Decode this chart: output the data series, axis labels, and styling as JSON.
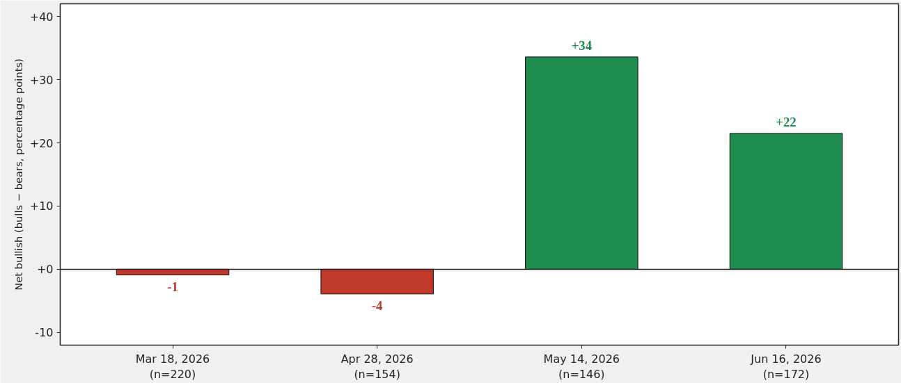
{
  "chart_data": {
    "type": "bar",
    "ylabel": "Net bullish (bulls − bears, percentage points)",
    "categories": [
      "Mar 18, 2026\n(n=220)",
      "Apr 28, 2026\n(n=154)",
      "May 14, 2026\n(n=146)",
      "Jun 16, 2026\n(n=172)"
    ],
    "values": [
      -0.9,
      -3.9,
      33.6,
      21.5
    ],
    "colors": [
      "#c0392b",
      "#c0392b",
      "#1e8b4f",
      "#1e8b4f"
    ],
    "value_labels": [
      "-1",
      "-4",
      "+34",
      "+22"
    ],
    "ylim": [
      -12,
      42
    ],
    "yticks": [
      {
        "value": -10,
        "label": "-10"
      },
      {
        "value": 0,
        "label": "+0"
      },
      {
        "value": 10,
        "label": "+10"
      },
      {
        "value": 20,
        "label": "+20"
      },
      {
        "value": 30,
        "label": "+30"
      },
      {
        "value": 40,
        "label": "+40"
      }
    ],
    "ref_lines": [
      {
        "axis": "y",
        "value": 0,
        "color": "#222222"
      }
    ],
    "grid": false
  }
}
